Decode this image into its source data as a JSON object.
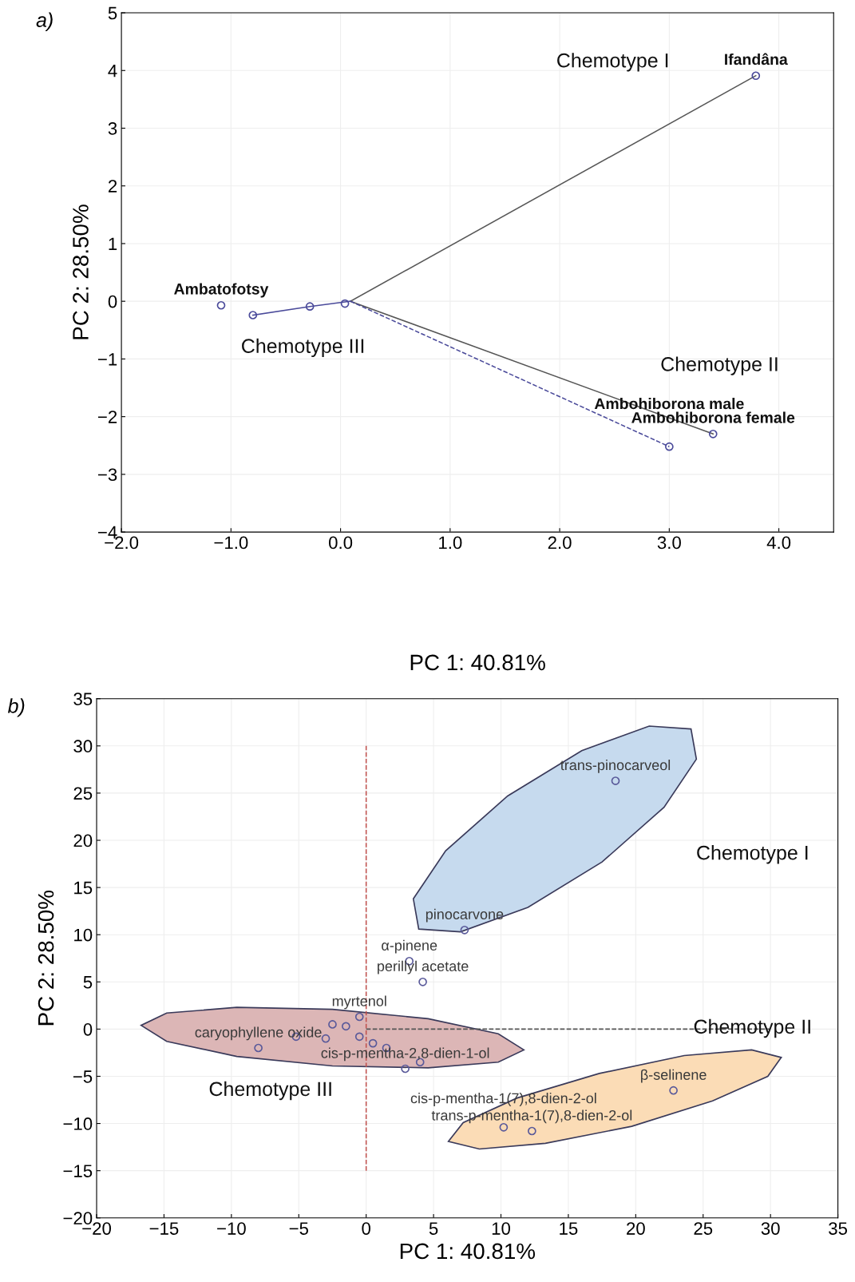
{
  "chart_data": [
    {
      "type": "scatter",
      "title": "a)",
      "xlabel": "PC 1: 40.81%",
      "ylabel": "PC 2: 28.50%",
      "xlim": [
        -2.0,
        4.5
      ],
      "ylim": [
        -4,
        5
      ],
      "xticks": [
        {
          "value": -2.0,
          "label": "−2.0"
        },
        {
          "value": -1.0,
          "label": "−1.0"
        },
        {
          "value": 0.0,
          "label": "0.0"
        },
        {
          "value": 1.0,
          "label": "1.0"
        },
        {
          "value": 2.0,
          "label": "2.0"
        },
        {
          "value": 3.0,
          "label": "3.0"
        },
        {
          "value": 4.0,
          "label": "4.0"
        }
      ],
      "yticks": [
        {
          "value": -4,
          "label": "−4"
        },
        {
          "value": -3,
          "label": "−3"
        },
        {
          "value": -2,
          "label": "−2"
        },
        {
          "value": -1,
          "label": "−1"
        },
        0,
        1,
        2,
        3,
        4,
        5
      ],
      "grid": true,
      "marker": "circle",
      "series": [
        {
          "type": "line",
          "marker": "none",
          "color": "#555555",
          "line_style": "solid",
          "x": [
            0.09,
            3.79
          ],
          "values": [
            0,
            3.91
          ]
        },
        {
          "type": "line",
          "marker": "none",
          "color": "#555555",
          "line_style": "solid",
          "x": [
            0.09,
            3.4
          ],
          "values": [
            0,
            -2.3
          ]
        },
        {
          "type": "line",
          "marker": "none",
          "color": "#4a4a9a",
          "line_style": "dashed",
          "x": [
            0.09,
            3.0
          ],
          "values": [
            0,
            -2.52
          ]
        },
        {
          "type": "line",
          "marker": "none",
          "color": "#4a4a9a",
          "line_style": "solid",
          "x": [
            -0.8,
            -0.28,
            0.09
          ],
          "values": [
            -0.24,
            -0.09,
            0
          ]
        },
        {
          "name": "Ifandâna",
          "color": "#4a4a9a",
          "x": [
            3.79
          ],
          "values": [
            3.91
          ]
        },
        {
          "name": "Ambohiborona female",
          "color": "#4a4a9a",
          "x": [
            3.4
          ],
          "values": [
            -2.3
          ]
        },
        {
          "name": "Ambohiborona male",
          "color": "#4a4a9a",
          "x": [
            3.0
          ],
          "values": [
            -2.52
          ]
        },
        {
          "name": "Ambatofotsy",
          "color": "#4a4a9a",
          "x": [
            -1.09
          ],
          "values": [
            -0.07
          ]
        },
        {
          "color": "#4a4a9a",
          "x": [
            -0.8,
            -0.28,
            0.04
          ],
          "values": [
            -0.24,
            -0.09,
            -0.04
          ]
        }
      ],
      "annotations": [
        "Chemotype I",
        "Chemotype II",
        "Chemotype III"
      ]
    },
    {
      "type": "scatter",
      "title": "b)",
      "xlabel": "PC 1: 40.81%",
      "ylabel": "PC 2: 28.50%",
      "xlim": [
        -20,
        35
      ],
      "ylim": [
        -20,
        35
      ],
      "xticks": [
        {
          "value": -20,
          "label": "−20"
        },
        {
          "value": -15,
          "label": "−15"
        },
        {
          "value": -10,
          "label": "−10"
        },
        {
          "value": -5,
          "label": "−5"
        },
        0,
        5,
        10,
        15,
        20,
        25,
        30,
        35
      ],
      "yticks": [
        {
          "value": -20,
          "label": "−20"
        },
        {
          "value": -15,
          "label": "−15"
        },
        {
          "value": -10,
          "label": "−10"
        },
        {
          "value": -5,
          "label": "−5"
        },
        0,
        5,
        10,
        15,
        20,
        25,
        30,
        35
      ],
      "grid": true,
      "marker": "circle",
      "series": [
        {
          "type": "area",
          "marker": "none",
          "color": "#c6daee",
          "x": [
            24.1,
            21.0,
            16.0,
            10.5,
            5.9,
            3.5,
            3.9,
            7.0,
            12.0,
            17.5,
            22.1,
            24.5
          ],
          "values": [
            31.8,
            32.1,
            29.5,
            24.7,
            18.9,
            13.8,
            10.6,
            10.3,
            12.9,
            17.7,
            23.5,
            28.6
          ]
        },
        {
          "type": "area",
          "marker": "none",
          "color": "#dcb6b6",
          "x": [
            11.7,
            9.8,
            4.6,
            -2.5,
            -9.6,
            -14.8,
            -16.7,
            -14.8,
            -9.6,
            -2.5,
            4.6,
            9.8
          ],
          "values": [
            -2.2,
            -0.5,
            1.1,
            2.1,
            2.3,
            1.7,
            0.4,
            -1.3,
            -2.9,
            -3.9,
            -4.1,
            -3.5
          ]
        },
        {
          "type": "area",
          "marker": "none",
          "color": "#fbdcb6",
          "x": [
            30.8,
            28.6,
            23.6,
            17.3,
            11.2,
            7.2,
            6.1,
            8.4,
            13.3,
            19.7,
            25.7,
            29.8
          ],
          "values": [
            -3.0,
            -2.2,
            -2.8,
            -4.7,
            -7.3,
            -9.9,
            -11.9,
            -12.7,
            -12.1,
            -10.3,
            -7.6,
            -5.0
          ]
        },
        {
          "type": "line",
          "marker": "none",
          "color": "#c0504d",
          "line_style": "dashed",
          "x": [
            0,
            0
          ],
          "values": [
            -15,
            30
          ]
        },
        {
          "type": "line",
          "marker": "none",
          "color": "#555555",
          "line_style": "dashed",
          "x": [
            0,
            30
          ],
          "values": [
            0,
            0
          ]
        },
        {
          "name": "trans-pinocarveol",
          "color": "#5a5a9a",
          "x": [
            18.5
          ],
          "values": [
            26.3
          ]
        },
        {
          "name": "pinocarvone",
          "color": "#5a5a9a",
          "x": [
            7.3
          ],
          "values": [
            10.5
          ]
        },
        {
          "name": "α-pinene",
          "color": "#5a5a9a",
          "x": [
            3.2
          ],
          "values": [
            7.2
          ]
        },
        {
          "name": "perillyl acetate",
          "color": "#5a5a9a",
          "x": [
            4.2
          ],
          "values": [
            5.0
          ]
        },
        {
          "name": "myrtenol",
          "color": "#5a5a9a",
          "x": [
            -0.5
          ],
          "values": [
            1.3
          ]
        },
        {
          "name": "caryophyllene oxide",
          "color": "#5a5a9a",
          "x": [
            -8.0
          ],
          "values": [
            -2.0
          ]
        },
        {
          "name": "cis-p-mentha-2,8-dien-1-ol",
          "color": "#5a5a9a",
          "x": [
            2.9
          ],
          "values": [
            -4.2
          ]
        },
        {
          "name": "β-selinene",
          "color": "#5a5a9a",
          "x": [
            22.8
          ],
          "values": [
            -6.5
          ]
        },
        {
          "name": "trans-p-mentha-1(7),8-dien-2-ol",
          "color": "#5a5a9a",
          "x": [
            12.3
          ],
          "values": [
            -10.8
          ]
        },
        {
          "name": "cis-p-mentha-1(7),8-dien-2-ol",
          "color": "#5a5a9a",
          "x": [
            10.2
          ],
          "values": [
            -10.4
          ]
        },
        {
          "color": "#5a5a9a",
          "x": [
            -5.2,
            -3.0,
            -2.5,
            -1.5,
            -0.5,
            0.5,
            1.5,
            4.0
          ],
          "values": [
            -0.8,
            -1.0,
            0.5,
            0.3,
            -0.8,
            -1.5,
            -2.0,
            -3.5
          ]
        }
      ],
      "annotations": [
        "Chemotype I",
        "Chemotype II",
        "Chemotype III"
      ]
    }
  ]
}
